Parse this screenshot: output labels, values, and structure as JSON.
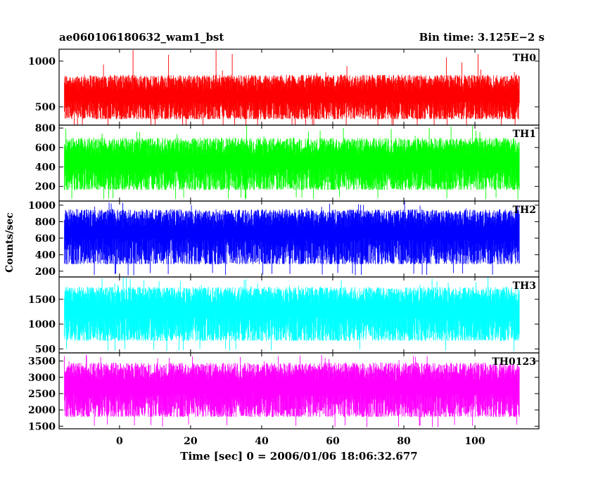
{
  "header": {
    "title_left": "ae060106180632_wam1_bst",
    "title_right": "Bin time: 3.125E−2 s"
  },
  "chart_data": {
    "type": "line",
    "title": "ae060106180632_wam1_bst",
    "subtitle": "Bin time: 3.125E−2 s",
    "xlabel": "Time [sec] 0 = 2006/01/06 18:06:32.677",
    "ylabel": "Counts/sec",
    "xlim": [
      -17,
      118
    ],
    "x_data_range": [
      -15.5,
      112.5
    ],
    "x_ticks": [
      0,
      20,
      40,
      60,
      80,
      100
    ],
    "x_tick_labels": [
      "0",
      "20",
      "40",
      "60",
      "80",
      "100"
    ],
    "grid": false,
    "panels": [
      {
        "name": "TH0",
        "color": "#ff0000",
        "ylim": [
          300,
          1130
        ],
        "y_ticks": [
          500,
          1000
        ],
        "y_tick_labels": [
          "500",
          "1000"
        ],
        "mean": 560,
        "band_low": 300,
        "band_high": 850,
        "spike_max": 1130
      },
      {
        "name": "TH1",
        "color": "#00ff00",
        "ylim": [
          50,
          830
        ],
        "y_ticks": [
          200,
          400,
          600,
          800
        ],
        "y_tick_labels": [
          "200",
          "400",
          "600",
          "800"
        ],
        "mean": 390,
        "band_low": 90,
        "band_high": 700,
        "spike_max": 830
      },
      {
        "name": "TH2",
        "color": "#0000ff",
        "ylim": [
          130,
          1050
        ],
        "y_ticks": [
          200,
          400,
          600,
          800,
          1000
        ],
        "y_tick_labels": [
          "200",
          "400",
          "600",
          "800",
          "1000"
        ],
        "mean": 600,
        "band_low": 180,
        "band_high": 950,
        "spike_max": 1050
      },
      {
        "name": "TH3",
        "color": "#00ffff",
        "ylim": [
          420,
          1950
        ],
        "y_ticks": [
          500,
          1000,
          1500
        ],
        "y_tick_labels": [
          "500",
          "1000",
          "1500"
        ],
        "mean": 1150,
        "band_low": 500,
        "band_high": 1750,
        "spike_max": 1950
      },
      {
        "name": "TH0123",
        "color": "#ff00ff",
        "ylim": [
          1420,
          3750
        ],
        "y_ticks": [
          1500,
          2000,
          2500,
          3000,
          3500
        ],
        "y_tick_labels": [
          "1500",
          "2000",
          "2500",
          "3000",
          "3500"
        ],
        "mean": 2500,
        "band_low": 1550,
        "band_high": 3450,
        "spike_max": 3700
      }
    ]
  }
}
